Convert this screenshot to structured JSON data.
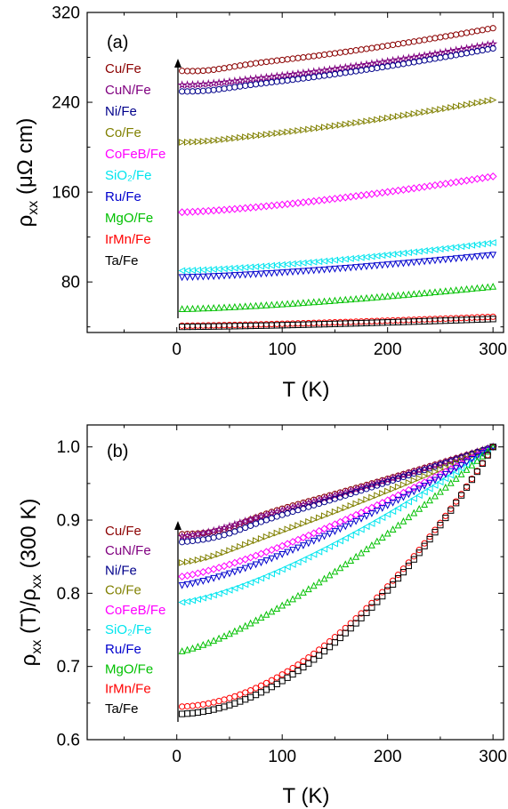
{
  "chart_data": [
    {
      "type": "scatter",
      "panel_label": "(a)",
      "xlabel": "T (K)",
      "ylabel": {
        "base": "ρ",
        "sub": "xx",
        "rest": " (μΩ cm)"
      },
      "xlim": [
        -85,
        310
      ],
      "ylim": [
        35,
        320
      ],
      "xticks": [
        0,
        100,
        200,
        300
      ],
      "yticks": [
        80,
        160,
        240,
        320
      ],
      "grid": false,
      "legend_position": "left",
      "annotation": "upward arrow beside legend",
      "series": [
        {
          "name": "Cu/Fe",
          "color": "#8b0000",
          "marker": "circle",
          "model": {
            "v0": 270,
            "dip": 3,
            "tmin": 25,
            "v300": 306
          }
        },
        {
          "name": "CuN/Fe",
          "color": "#800080",
          "marker": "star",
          "model": {
            "v0": 256,
            "dip": 1,
            "tmin": 25,
            "v300": 292
          }
        },
        {
          "name": "Ni/Fe",
          "color": "#00008b",
          "marker": "circle",
          "model": {
            "v0": 251,
            "dip": 2,
            "tmin": 25,
            "v300": 288
          }
        },
        {
          "name": "Co/Fe",
          "color": "#808000",
          "marker": "triangle-right",
          "model": {
            "v0": 205,
            "dip": 1,
            "tmin": 25,
            "v300": 242
          }
        },
        {
          "name": "CoFeB/Fe",
          "color": "#ff00ff",
          "marker": "diamond",
          "model": {
            "v0": 142,
            "dip": 0,
            "tmin": 25,
            "v300": 174
          }
        },
        {
          "name": "SiO₂/Fe",
          "color": "#00e5ee",
          "marker": "triangle-left",
          "model": {
            "v0": 90,
            "dip": 0,
            "tmin": 25,
            "v300": 115
          }
        },
        {
          "name": "Ru/Fe",
          "color": "#0000cd",
          "marker": "triangle-down",
          "model": {
            "v0": 84,
            "dip": 0,
            "tmin": 25,
            "v300": 104
          }
        },
        {
          "name": "MgO/Fe",
          "color": "#00c000",
          "marker": "triangle-up",
          "model": {
            "v0": 56,
            "dip": 0,
            "tmin": 25,
            "v300": 76
          }
        },
        {
          "name": "IrMn/Fe",
          "color": "#ff0000",
          "marker": "circle",
          "model": {
            "v0": 41,
            "dip": 0,
            "tmin": 25,
            "v300": 49
          }
        },
        {
          "name": "Ta/Fe",
          "color": "#000000",
          "marker": "square",
          "model": {
            "v0": 40,
            "dip": 0,
            "tmin": 25,
            "v300": 47
          }
        }
      ]
    },
    {
      "type": "scatter",
      "panel_label": "(b)",
      "xlabel": "T (K)",
      "ylabel": {
        "base": "ρ",
        "sub": "xx",
        "rest": " (T)/",
        "base2": "ρ",
        "sub2": "xx",
        "rest2": " (300 K)"
      },
      "xlim": [
        -85,
        310
      ],
      "ylim": [
        0.6,
        1.03
      ],
      "xticks": [
        0,
        100,
        200,
        300
      ],
      "yticks": [
        0.6,
        0.7,
        0.8,
        0.9,
        1.0
      ],
      "grid": false,
      "legend_position": "left",
      "annotation": "upward arrow beside legend",
      "series": [
        {
          "name": "Cu/Fe",
          "color": "#8b0000",
          "marker": "circle",
          "model": {
            "v0": 0.883,
            "dip": 0.009,
            "tmin": 40,
            "v300": 1.0,
            "p": 1.15
          }
        },
        {
          "name": "CuN/Fe",
          "color": "#800080",
          "marker": "star",
          "model": {
            "v0": 0.879,
            "dip": 0.004,
            "tmin": 30,
            "v300": 1.0,
            "p": 1.15
          }
        },
        {
          "name": "Ni/Fe",
          "color": "#00008b",
          "marker": "circle",
          "model": {
            "v0": 0.871,
            "dip": 0.006,
            "tmin": 40,
            "v300": 1.0,
            "p": 1.15
          }
        },
        {
          "name": "Co/Fe",
          "color": "#808000",
          "marker": "triangle-right",
          "model": {
            "v0": 0.843,
            "dip": 0.004,
            "tmin": 30,
            "v300": 1.0,
            "p": 1.2
          }
        },
        {
          "name": "CoFeB/Fe",
          "color": "#ff00ff",
          "marker": "diamond",
          "model": {
            "v0": 0.822,
            "dip": 0.0,
            "tmin": 30,
            "v300": 1.0,
            "p": 1.3
          }
        },
        {
          "name": "SiO₂/Fe",
          "color": "#00e5ee",
          "marker": "triangle-left",
          "model": {
            "v0": 0.787,
            "dip": 0.0,
            "tmin": 30,
            "v300": 1.0,
            "p": 1.4
          }
        },
        {
          "name": "Ru/Fe",
          "color": "#0000cd",
          "marker": "triangle-down",
          "model": {
            "v0": 0.81,
            "dip": 0.0,
            "tmin": 30,
            "v300": 1.0,
            "p": 1.35
          }
        },
        {
          "name": "MgO/Fe",
          "color": "#00c000",
          "marker": "triangle-up",
          "model": {
            "v0": 0.72,
            "dip": 0.0,
            "tmin": 30,
            "v300": 1.0,
            "p": 1.35
          }
        },
        {
          "name": "IrMn/Fe",
          "color": "#ff0000",
          "marker": "circle",
          "model": {
            "v0": 0.645,
            "dip": 0.0,
            "tmin": 30,
            "v300": 1.0,
            "p": 1.9
          }
        },
        {
          "name": "Ta/Fe",
          "color": "#000000",
          "marker": "square",
          "model": {
            "v0": 0.635,
            "dip": 0.0,
            "tmin": 30,
            "v300": 1.0,
            "p": 1.9
          }
        }
      ]
    }
  ]
}
